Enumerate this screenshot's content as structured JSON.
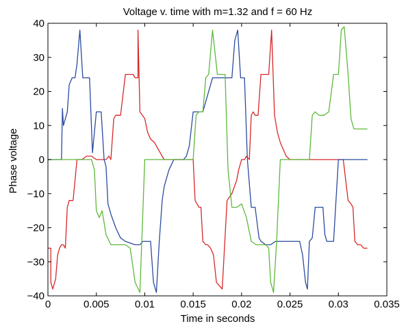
{
  "chart_data": {
    "type": "line",
    "title": "Voltage v. time with m=1.32 and f = 60 Hz",
    "xlabel": "Time in seconds",
    "ylabel": "Phase voltage",
    "xlim": [
      0,
      0.035
    ],
    "ylim": [
      -40,
      40
    ],
    "xticks": [
      0,
      0.005,
      0.01,
      0.015,
      0.02,
      0.025,
      0.03,
      0.035
    ],
    "xtick_labels": [
      "0",
      "0.005",
      "0.01",
      "0.015",
      "0.02",
      "0.025",
      "0.03",
      "0.035"
    ],
    "yticks": [
      -40,
      -30,
      -20,
      -10,
      0,
      10,
      20,
      30,
      40
    ],
    "ytick_labels": [
      "−40",
      "−30",
      "−20",
      "−10",
      "0",
      "10",
      "20",
      "30",
      "40"
    ],
    "grid": false,
    "legend": "none",
    "series_colors": [
      "#d62728",
      "#2b4aa0",
      "#5cb83a"
    ],
    "series": [
      {
        "color": "#d62728",
        "x": [
          0,
          0.0003,
          0.0003,
          0.0005,
          0.0008,
          0.001,
          0.0012,
          0.0014,
          0.0016,
          0.0018,
          0.002,
          0.0022,
          0.0024,
          0.0026,
          0.003,
          0.0035,
          0.004,
          0.0045,
          0.005,
          0.0055,
          0.006,
          0.0063,
          0.0065,
          0.0068,
          0.007,
          0.0072,
          0.0075,
          0.008,
          0.0082,
          0.0084,
          0.0086,
          0.0088,
          0.009,
          0.0093,
          0.0093,
          0.0095,
          0.01,
          0.0103,
          0.0106,
          0.011,
          0.0114,
          0.012,
          0.013,
          0.014,
          0.0147,
          0.015,
          0.0152,
          0.0154,
          0.0156,
          0.0158,
          0.016,
          0.0163,
          0.0165,
          0.0168,
          0.0171,
          0.0174,
          0.018,
          0.0185,
          0.019,
          0.0195,
          0.0197,
          0.02,
          0.0203,
          0.0205,
          0.0208,
          0.021,
          0.0212,
          0.0214,
          0.0217,
          0.022,
          0.0224,
          0.0228,
          0.0231,
          0.0234,
          0.0237,
          0.024,
          0.0243,
          0.0246,
          0.025,
          0.0255,
          0.026,
          0.0265,
          0.027,
          0.0275,
          0.028,
          0.029,
          0.03,
          0.0305,
          0.031,
          0.0313,
          0.0315,
          0.0317,
          0.032,
          0.0323,
          0.0326,
          0.0329,
          0.033
        ],
        "y": [
          -26,
          -26,
          -36,
          -38,
          -35,
          -28,
          -26,
          -25,
          -25,
          -26,
          -14,
          -12,
          -12,
          -12,
          0,
          0,
          1,
          1,
          0,
          0,
          0,
          1,
          0,
          12,
          13,
          13,
          13,
          25,
          25,
          25,
          25,
          25,
          24,
          24,
          38,
          14,
          12,
          8,
          6,
          5,
          3,
          0,
          0,
          0,
          0,
          0,
          -12,
          -13,
          -14,
          -14,
          -24,
          -25,
          -25,
          -26,
          -28,
          -36,
          -38,
          -12,
          -10,
          -6,
          -3,
          0,
          0,
          1,
          0,
          13,
          14,
          13,
          13,
          25,
          25,
          25,
          38,
          13,
          8,
          5,
          3,
          1,
          0,
          0,
          0,
          0,
          0,
          0,
          0,
          0,
          0,
          0,
          -12,
          -13,
          -14,
          -24,
          -25,
          -25,
          -26,
          -26,
          -26
        ]
      },
      {
        "color": "#2b4aa0",
        "x": [
          0,
          0.0008,
          0.001,
          0.0012,
          0.0014,
          0.0015,
          0.0016,
          0.0018,
          0.002,
          0.0022,
          0.0025,
          0.0028,
          0.003,
          0.0033,
          0.0036,
          0.0038,
          0.004,
          0.0043,
          0.0046,
          0.005,
          0.0055,
          0.0058,
          0.006,
          0.0062,
          0.0065,
          0.007,
          0.0075,
          0.008,
          0.009,
          0.0095,
          0.0098,
          0.01,
          0.0103,
          0.0106,
          0.0109,
          0.0112,
          0.0115,
          0.0118,
          0.012,
          0.0125,
          0.013,
          0.0135,
          0.014,
          0.0143,
          0.0146,
          0.015,
          0.016,
          0.017,
          0.018,
          0.0185,
          0.019,
          0.0193,
          0.0196,
          0.0199,
          0.0203,
          0.0206,
          0.021,
          0.0214,
          0.0218,
          0.022,
          0.0225,
          0.023,
          0.0235,
          0.024,
          0.0245,
          0.025,
          0.0255,
          0.026,
          0.0263,
          0.0266,
          0.0268,
          0.027,
          0.0273,
          0.0276,
          0.028,
          0.0284,
          0.0286,
          0.0288,
          0.029,
          0.0295,
          0.03,
          0.0305,
          0.0308,
          0.031,
          0.0312,
          0.0315,
          0.032,
          0.033
        ],
        "y": [
          0,
          0,
          0,
          0,
          0,
          15,
          10,
          12,
          14,
          22,
          24,
          24,
          28,
          38,
          24,
          24,
          24,
          24,
          2,
          14,
          14,
          0,
          -2,
          -13,
          -16,
          -20,
          -23,
          -24,
          -25,
          -25,
          -24,
          -24,
          -24,
          -24,
          -36,
          -39,
          -24,
          -12,
          -8,
          -3,
          0,
          0,
          0,
          1,
          4,
          14,
          14,
          24,
          24,
          24,
          24,
          35,
          38,
          24,
          24,
          0,
          -14,
          -14,
          -23,
          -24,
          -25,
          -25,
          -24,
          -24,
          -24,
          -24,
          -24,
          -24,
          -28,
          -36,
          -38,
          -24,
          -23,
          -14,
          -14,
          -14,
          -22,
          -24,
          -24,
          -24,
          0,
          0,
          0,
          0,
          0,
          0,
          0,
          0
        ]
      },
      {
        "color": "#5cb83a",
        "x": [
          0,
          0.0005,
          0.001,
          0.002,
          0.003,
          0.004,
          0.0045,
          0.0048,
          0.005,
          0.0053,
          0.0056,
          0.006,
          0.0065,
          0.007,
          0.0075,
          0.008,
          0.0085,
          0.009,
          0.0095,
          0.01,
          0.011,
          0.012,
          0.013,
          0.014,
          0.0145,
          0.015,
          0.0153,
          0.0156,
          0.016,
          0.0163,
          0.0166,
          0.017,
          0.0175,
          0.018,
          0.0183,
          0.0186,
          0.019,
          0.0195,
          0.02,
          0.0205,
          0.021,
          0.0215,
          0.022,
          0.0225,
          0.0228,
          0.023,
          0.0233,
          0.0236,
          0.024,
          0.025,
          0.026,
          0.027,
          0.0273,
          0.0276,
          0.028,
          0.0285,
          0.029,
          0.0295,
          0.0298,
          0.03,
          0.0303,
          0.0306,
          0.031,
          0.0313,
          0.0316,
          0.032,
          0.0325,
          0.033
        ],
        "y": [
          0,
          0,
          0,
          0,
          0,
          0,
          0,
          -3,
          -15,
          -17,
          -15,
          -22,
          -25,
          -25,
          -25,
          -25,
          -26,
          -36,
          -39,
          0,
          0,
          0,
          0,
          0,
          0,
          0,
          13,
          14,
          14,
          24,
          25,
          38,
          25,
          25,
          25,
          -3,
          -14,
          -14,
          -13,
          -17,
          -24,
          -25,
          -25,
          -25,
          -26,
          -36,
          -39,
          -25,
          0,
          0,
          0,
          0,
          13,
          14,
          13,
          13,
          14,
          25,
          25,
          25,
          38,
          39,
          25,
          12,
          9,
          9,
          9,
          9
        ]
      }
    ]
  }
}
